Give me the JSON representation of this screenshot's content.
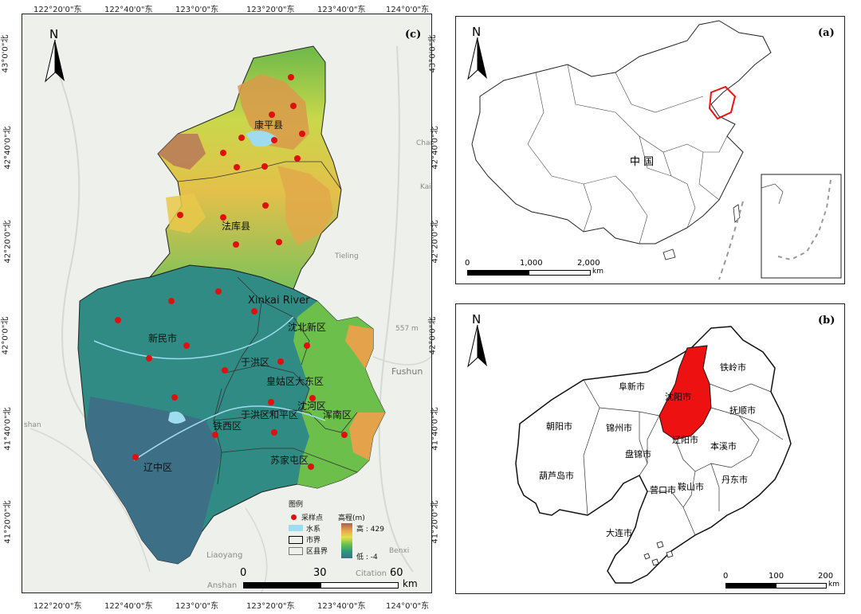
{
  "panel_c": {
    "label": "(c)",
    "north": "N",
    "top_coords": [
      "122°20'0\"东",
      "122°40'0\"东",
      "123°0'0\"东",
      "123°20'0\"东",
      "123°40'0\"东",
      "124°0'0\"东"
    ],
    "bottom_coords": [
      "122°20'0\"东",
      "122°40'0\"东",
      "123°0'0\"东",
      "123°20'0\"东",
      "123°40'0\"东",
      "124°0'0\"东"
    ],
    "left_coords": [
      "43°0'0\"北",
      "42°40'0\"北",
      "42°20'0\"北",
      "42°0'0\"北",
      "41°40'0\"北",
      "41°20'0\"北"
    ],
    "right_coords": [
      "43°0'0\"北",
      "42°40'0\"北",
      "42°20'0\"北",
      "42°0'0\"北",
      "41°40'0\"北",
      "41°20'0\"北"
    ],
    "district_labels": {
      "kangping": "康平县",
      "faku": "法库县",
      "xinmin": "新民市",
      "shenbei": "沈北新区",
      "yuhong": "于洪区",
      "huanggu_dadong": "皇姑区大东区",
      "shenhe": "沈河区",
      "yuhong_heping": "于洪区和平区",
      "hunnan": "浑南区",
      "tiexi": "铁西区",
      "sujiatun": "苏家屯区",
      "liaozhong": "辽中区"
    },
    "river_label": "Xinkai River",
    "basemap_labels": {
      "fushun": "Fushun",
      "tieling": "Tieling",
      "liaoyang": "Liaoyang",
      "anshan": "Anshan",
      "benxi": "Benxi",
      "shan": "shan",
      "chang": "Chang",
      "kai": "Kai",
      "m557": "557 m",
      "citation": "Citation"
    },
    "legend": {
      "title": "图例",
      "sample": "采样点",
      "water": "水系",
      "city": "市界",
      "county": "区县界",
      "elev_title": "高程(m)",
      "high": "高 : 429",
      "low": "低 : -4"
    },
    "scale": {
      "ticks": [
        "0",
        "30",
        "60"
      ],
      "unit": "km"
    }
  },
  "panel_a": {
    "label": "(a)",
    "north": "N",
    "country": "中 国",
    "scale": {
      "ticks": [
        "0",
        "1,000",
        "2,000"
      ],
      "unit": "km"
    }
  },
  "panel_b": {
    "label": "(b)",
    "north": "N",
    "cities": {
      "tieling": "铁岭市",
      "fuxin": "阜新市",
      "shenyang": "沈阳市",
      "fushun": "抚顺市",
      "chaoyang": "朝阳市",
      "jinzhou": "锦州市",
      "liaoyang": "辽阳市",
      "benxi": "本溪市",
      "panjin": "盘锦市",
      "huludao": "葫芦岛市",
      "yingkou": "营口市",
      "anshan": "鞍山市",
      "dandong": "丹东市",
      "dalian": "大连市"
    },
    "scale": {
      "ticks": [
        "0",
        "100",
        "200"
      ],
      "unit": "km"
    }
  },
  "colors": {
    "highlight": "#ee1111",
    "sample": "#e01010",
    "water": "#9fdcf0",
    "basemap": "#eef0ec"
  }
}
